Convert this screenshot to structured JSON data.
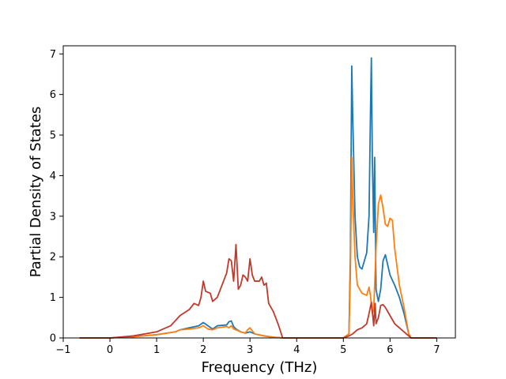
{
  "chart_data": {
    "type": "line",
    "title": "",
    "xlabel": "Frequency (THz)",
    "ylabel": "Partial Density of States",
    "xlim": [
      -1,
      7.4
    ],
    "ylim": [
      0,
      7.2
    ],
    "xticks": [
      -1,
      0,
      1,
      2,
      3,
      4,
      5,
      6,
      7
    ],
    "yticks": [
      0,
      1,
      2,
      3,
      4,
      5,
      6,
      7
    ],
    "grid": false,
    "legend": "none",
    "series": [
      {
        "color": "#1f77b4",
        "x": [
          -0.65,
          0,
          0.5,
          1.0,
          1.4,
          1.5,
          1.7,
          1.9,
          2.0,
          2.1,
          2.2,
          2.3,
          2.5,
          2.55,
          2.6,
          2.65,
          2.7,
          2.8,
          2.9,
          3.0,
          3.1,
          3.3,
          3.5,
          3.7,
          4.0,
          5.0,
          5.12,
          5.15,
          5.18,
          5.2,
          5.25,
          5.3,
          5.35,
          5.4,
          5.5,
          5.55,
          5.58,
          5.6,
          5.62,
          5.65,
          5.67,
          5.7,
          5.75,
          5.8,
          5.85,
          5.9,
          6.0,
          6.1,
          6.2,
          6.3,
          6.4,
          6.45,
          7.0
        ],
        "y": [
          0,
          0,
          0.03,
          0.08,
          0.15,
          0.2,
          0.25,
          0.3,
          0.38,
          0.3,
          0.22,
          0.3,
          0.32,
          0.4,
          0.42,
          0.28,
          0.22,
          0.15,
          0.12,
          0.15,
          0.1,
          0.05,
          0.02,
          0,
          0,
          0,
          0.1,
          2.0,
          6.7,
          5.5,
          3.0,
          2.0,
          1.75,
          1.7,
          2.1,
          3.0,
          5.5,
          6.9,
          4.5,
          2.6,
          4.45,
          1.2,
          0.9,
          1.2,
          1.9,
          2.05,
          1.55,
          1.3,
          1.0,
          0.6,
          0.1,
          0,
          0
        ]
      },
      {
        "color": "#ff7f0e",
        "x": [
          -0.65,
          0,
          0.5,
          1.0,
          1.4,
          1.5,
          1.7,
          1.9,
          2.0,
          2.1,
          2.2,
          2.3,
          2.5,
          2.55,
          2.6,
          2.65,
          2.7,
          2.8,
          2.9,
          2.95,
          3.0,
          3.1,
          3.3,
          3.5,
          3.7,
          4.0,
          5.0,
          5.12,
          5.15,
          5.18,
          5.2,
          5.25,
          5.3,
          5.4,
          5.5,
          5.55,
          5.58,
          5.62,
          5.65,
          5.7,
          5.75,
          5.8,
          5.85,
          5.9,
          5.95,
          6.0,
          6.05,
          6.1,
          6.2,
          6.3,
          6.4,
          6.45,
          7.0
        ],
        "y": [
          0,
          0,
          0.03,
          0.08,
          0.15,
          0.2,
          0.22,
          0.25,
          0.3,
          0.22,
          0.2,
          0.25,
          0.28,
          0.25,
          0.3,
          0.22,
          0.2,
          0.15,
          0.12,
          0.2,
          0.25,
          0.1,
          0.05,
          0.02,
          0,
          0,
          0,
          0.1,
          1.5,
          4.45,
          3.5,
          2.0,
          1.3,
          1.1,
          1.05,
          1.25,
          1.05,
          0.6,
          0.7,
          2.2,
          3.3,
          3.52,
          3.2,
          2.8,
          2.75,
          2.95,
          2.9,
          2.2,
          1.3,
          0.75,
          0.1,
          0,
          0
        ]
      },
      {
        "color": "#c0392b",
        "x": [
          -0.65,
          0,
          0.5,
          1.0,
          1.3,
          1.5,
          1.7,
          1.8,
          1.9,
          1.95,
          2.0,
          2.05,
          2.15,
          2.2,
          2.3,
          2.4,
          2.5,
          2.55,
          2.6,
          2.65,
          2.7,
          2.75,
          2.8,
          2.85,
          2.9,
          2.95,
          3.0,
          3.05,
          3.1,
          3.2,
          3.25,
          3.3,
          3.35,
          3.4,
          3.5,
          3.6,
          3.7,
          4.0,
          5.0,
          5.12,
          5.2,
          5.3,
          5.4,
          5.5,
          5.55,
          5.6,
          5.63,
          5.65,
          5.68,
          5.7,
          5.75,
          5.8,
          5.85,
          5.9,
          6.0,
          6.1,
          6.2,
          6.3,
          6.4,
          6.45,
          7.0
        ],
        "y": [
          0,
          0,
          0.05,
          0.15,
          0.3,
          0.55,
          0.7,
          0.85,
          0.8,
          1.0,
          1.4,
          1.15,
          1.1,
          0.9,
          1.0,
          1.3,
          1.6,
          1.95,
          1.9,
          1.4,
          2.3,
          1.2,
          1.3,
          1.55,
          1.5,
          1.4,
          1.95,
          1.55,
          1.4,
          1.4,
          1.5,
          1.3,
          1.35,
          0.85,
          0.65,
          0.35,
          0,
          0,
          0,
          0.05,
          0.1,
          0.2,
          0.25,
          0.35,
          0.6,
          0.88,
          0.55,
          0.3,
          0.85,
          0.35,
          0.5,
          0.8,
          0.82,
          0.75,
          0.55,
          0.35,
          0.25,
          0.15,
          0.05,
          0,
          0
        ]
      }
    ]
  }
}
